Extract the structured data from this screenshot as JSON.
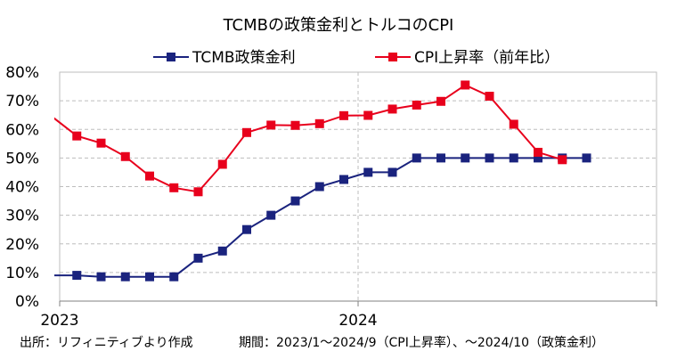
{
  "chart_data": {
    "type": "line",
    "title": "TCMBの政策金利とトルコのCPI",
    "x": [
      "2022-12",
      "2023-01",
      "2023-02",
      "2023-03",
      "2023-04",
      "2023-05",
      "2023-06",
      "2023-07",
      "2023-08",
      "2023-09",
      "2023-10",
      "2023-11",
      "2023-12",
      "2024-01",
      "2024-02",
      "2024-03",
      "2024-04",
      "2024-05",
      "2024-06",
      "2024-07",
      "2024-08",
      "2024-09",
      "2024-10"
    ],
    "x_tick_labels": [
      "2023",
      "2024"
    ],
    "ylim": [
      0,
      80
    ],
    "y_tick_labels": [
      "0%",
      "10%",
      "20%",
      "30%",
      "40%",
      "50%",
      "60%",
      "70%",
      "80%"
    ],
    "y_ticks": [
      0,
      10,
      20,
      30,
      40,
      50,
      60,
      70,
      80
    ],
    "grid": true,
    "legend_position": "top",
    "series": [
      {
        "name": "TCMB政策金利",
        "color": "#1a237e",
        "marker": "square",
        "values": [
          9.0,
          9.0,
          8.5,
          8.5,
          8.5,
          8.5,
          15.0,
          17.5,
          25.0,
          30.0,
          35.0,
          40.0,
          42.5,
          45.0,
          45.0,
          50.0,
          50.0,
          50.0,
          50.0,
          50.0,
          50.0,
          50.0,
          50.0
        ]
      },
      {
        "name": "CPI上昇率（前年比）",
        "color": "#e8001c",
        "marker": "square",
        "values": [
          64.3,
          57.7,
          55.2,
          50.5,
          43.7,
          39.6,
          38.2,
          47.8,
          58.9,
          61.5,
          61.4,
          62.0,
          64.8,
          64.9,
          67.1,
          68.5,
          69.8,
          75.5,
          71.6,
          61.8,
          52.0,
          49.4,
          null
        ]
      }
    ],
    "notes": {
      "source": "出所：リフィニティブより作成",
      "period": "期間：2023/1～2024/9（CPI上昇率）、～2024/10（政策金利）"
    }
  }
}
